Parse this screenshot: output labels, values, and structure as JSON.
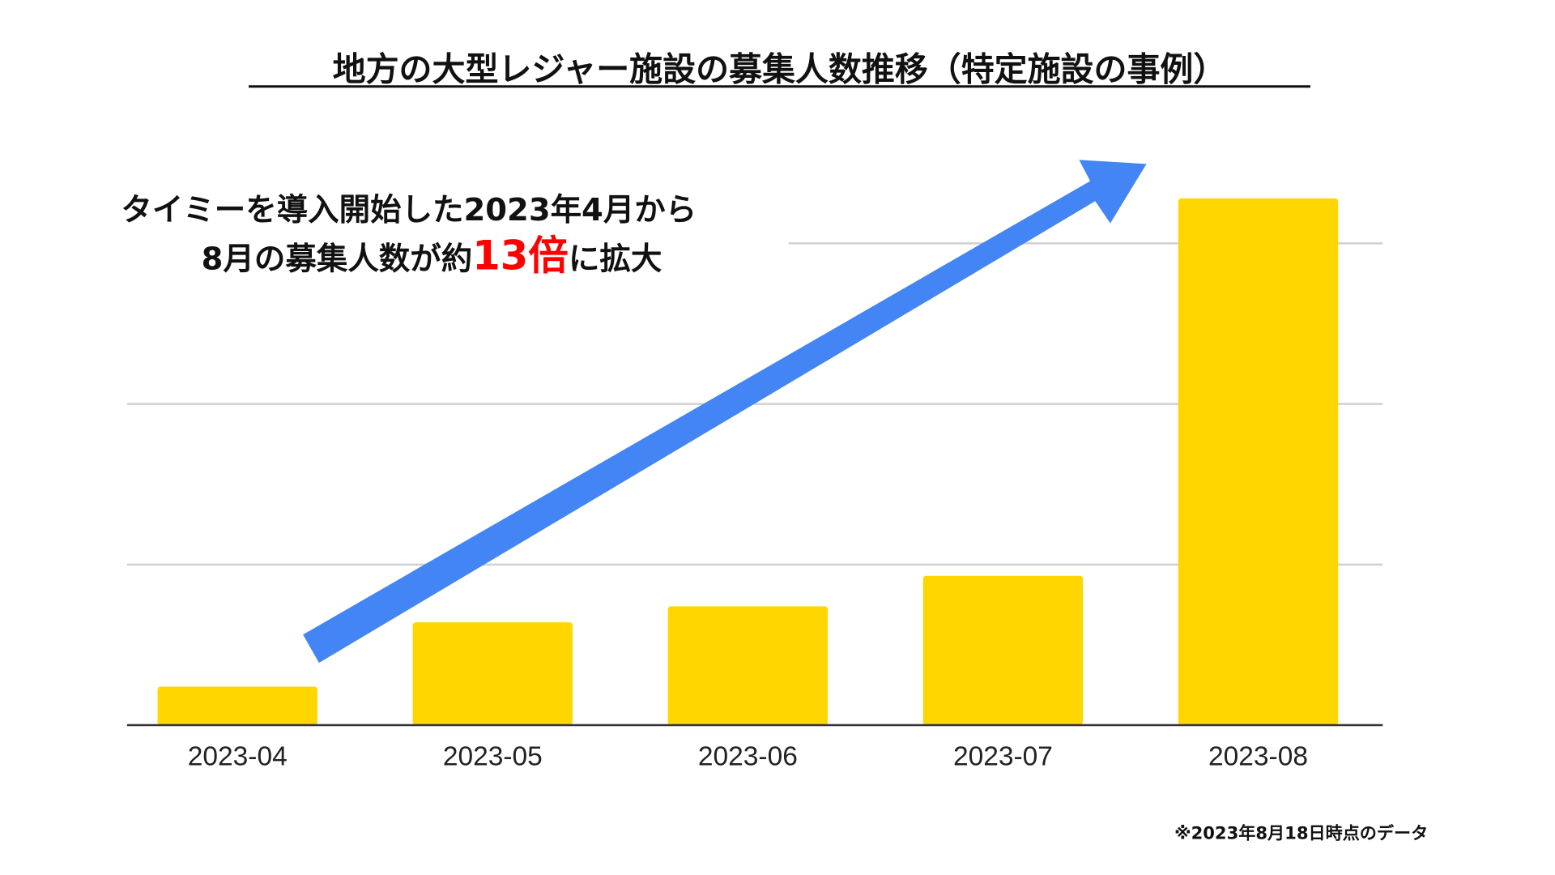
{
  "chart_data": {
    "type": "bar",
    "title": "地方の大型レジャー施設の募集人数推移（特定施設の事例）",
    "categories": [
      "2023-04",
      "2023-05",
      "2023-06",
      "2023-07",
      "2023-08"
    ],
    "values": [
      0.24,
      0.64,
      0.74,
      0.93,
      3.28
    ],
    "value_unit": "relative (gridline units, no y-axis labels shown)",
    "xlabel": "",
    "ylabel": "",
    "ylim": [
      0,
      3
    ],
    "gridlines": [
      1,
      2,
      3
    ],
    "grid": true,
    "bar_color": "#FFD600",
    "arrow_color": "#4385F4",
    "annotation": {
      "line1": "タイミーを導入開始した2023年4月から",
      "line2_prefix": "8月の募集人数が約",
      "line2_highlight": "13倍",
      "line2_suffix": "に拡大",
      "highlight_color": "#FF0000"
    },
    "footnote": "※2023年8月18日時点のデータ"
  }
}
